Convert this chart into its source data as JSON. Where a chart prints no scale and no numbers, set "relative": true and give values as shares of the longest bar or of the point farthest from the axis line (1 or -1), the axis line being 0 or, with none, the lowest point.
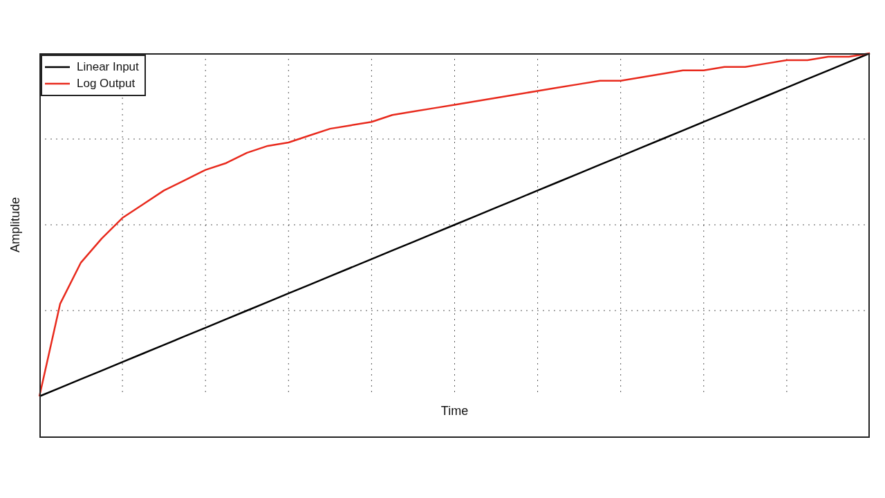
{
  "chart_data": {
    "type": "line",
    "relative": true,
    "xlabel": "Time",
    "ylabel": "Amplitude",
    "categories": [
      null,
      null,
      null,
      null,
      null,
      null,
      null,
      null,
      null,
      null,
      null,
      null,
      null,
      null,
      null,
      null,
      null,
      null,
      null,
      null,
      null,
      null,
      null,
      null,
      null,
      null,
      null,
      null,
      null,
      null,
      null,
      null,
      null,
      null,
      null,
      null,
      null,
      null,
      null,
      null,
      null
    ],
    "series": [
      {
        "name": "Linear Input",
        "color": "#000000",
        "values": [
          0,
          0.025,
          0.05,
          0.075,
          0.1,
          0.125,
          0.15,
          0.175,
          0.2,
          0.225,
          0.25,
          0.275,
          0.3,
          0.325,
          0.35,
          0.375,
          0.4,
          0.425,
          0.45,
          0.475,
          0.5,
          0.525,
          0.55,
          0.575,
          0.6,
          0.625,
          0.65,
          0.675,
          0.7,
          0.725,
          0.75,
          0.775,
          0.8,
          0.825,
          0.85,
          0.875,
          0.9,
          0.925,
          0.95,
          0.975,
          1
        ]
      },
      {
        "name": "Log Output",
        "color": "#e8291c",
        "values": [
          0,
          0.27,
          0.39,
          0.46,
          0.52,
          0.56,
          0.6,
          0.63,
          0.66,
          0.68,
          0.71,
          0.73,
          0.74,
          0.76,
          0.78,
          0.79,
          0.8,
          0.82,
          0.83,
          0.84,
          0.85,
          0.86,
          0.87,
          0.88,
          0.89,
          0.9,
          0.91,
          0.92,
          0.92,
          0.93,
          0.94,
          0.95,
          0.95,
          0.96,
          0.96,
          0.97,
          0.98,
          0.98,
          0.99,
          0.99,
          1
        ]
      }
    ],
    "grid": true,
    "legend": "top left",
    "marker": "none",
    "line_style": "solid"
  }
}
